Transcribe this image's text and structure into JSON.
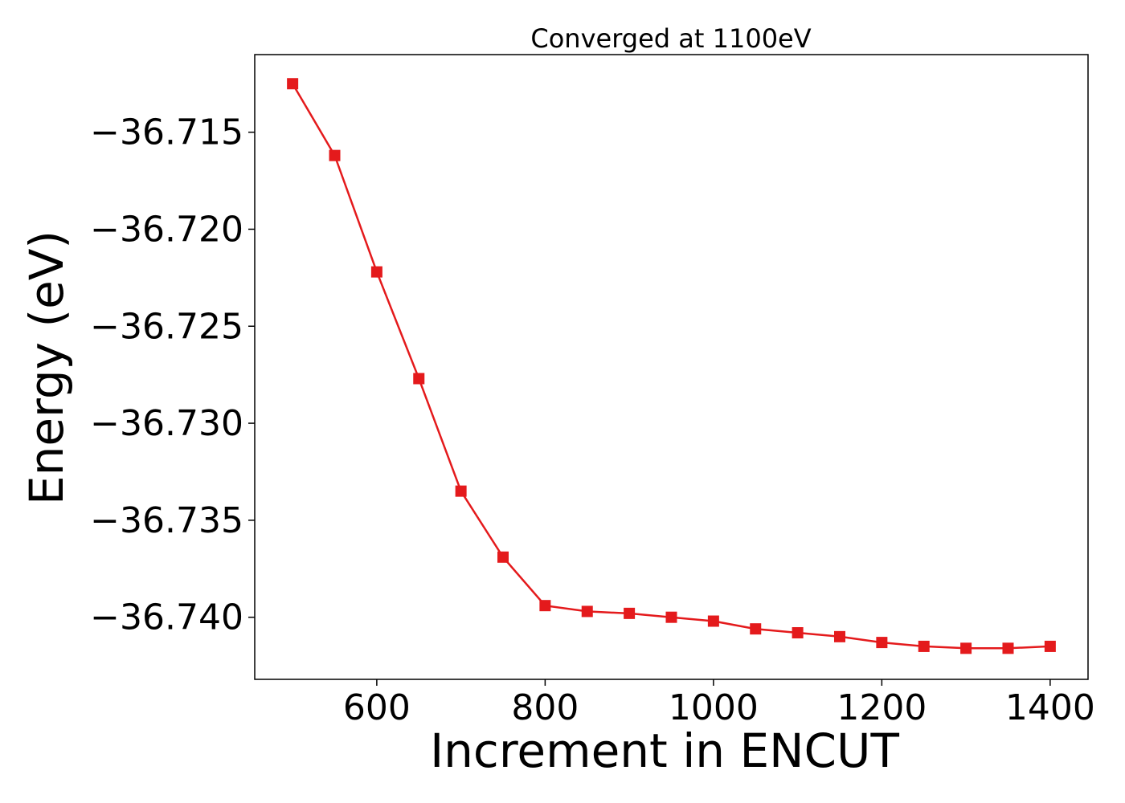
{
  "chart_data": {
    "type": "line",
    "title": "Converged at 1100eV",
    "xlabel": "Increment in ENCUT",
    "ylabel": "Energy (eV)",
    "xlim": [
      455,
      1445
    ],
    "ylim": [
      -36.7432,
      -36.711
    ],
    "x_ticks": [
      600,
      800,
      1000,
      1200,
      1400
    ],
    "x_tick_labels": [
      "600",
      "800",
      "1000",
      "1200",
      "1400"
    ],
    "y_ticks": [
      -36.715,
      -36.72,
      -36.725,
      -36.73,
      -36.735,
      -36.74
    ],
    "y_tick_labels": [
      "−36.715",
      "−36.720",
      "−36.725",
      "−36.730",
      "−36.735",
      "−36.740"
    ],
    "grid": false,
    "series": [
      {
        "color": "#e41a1c",
        "marker": "square",
        "x": [
          500,
          550,
          600,
          650,
          700,
          750,
          800,
          850,
          900,
          950,
          1000,
          1050,
          1100,
          1150,
          1200,
          1250,
          1300,
          1350,
          1400
        ],
        "y": [
          -36.7125,
          -36.7162,
          -36.7222,
          -36.7277,
          -36.7335,
          -36.7369,
          -36.7394,
          -36.7397,
          -36.7398,
          -36.74,
          -36.7402,
          -36.7406,
          -36.7408,
          -36.741,
          -36.7413,
          -36.7415,
          -36.7416,
          -36.7416,
          -36.7415
        ]
      }
    ]
  }
}
